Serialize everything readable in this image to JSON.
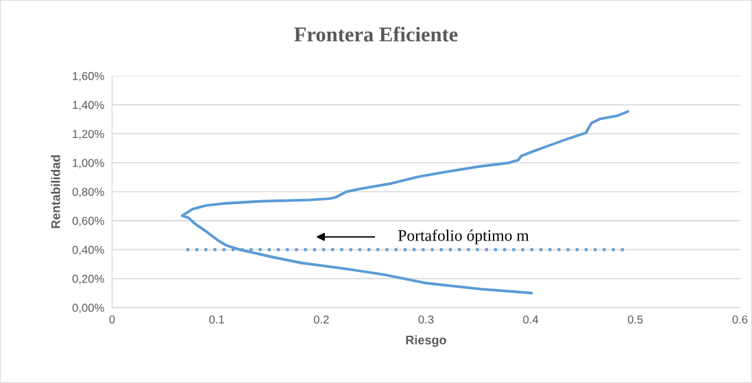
{
  "chart_data": {
    "type": "line",
    "title": "Frontera Eficiente",
    "xlabel": "Riesgo",
    "ylabel": "Rentabilidad",
    "series": [
      {
        "color": "#5b9bd5",
        "line_style": "solid",
        "x": [
          0.401,
          0.352,
          0.299,
          0.26,
          0.221,
          0.181,
          0.155,
          0.122,
          0.109,
          0.1,
          0.09,
          0.079,
          0.073,
          0.067,
          0.077,
          0.09,
          0.109,
          0.142,
          0.188,
          0.208,
          0.214,
          0.224,
          0.237,
          0.267,
          0.293,
          0.319,
          0.352,
          0.379,
          0.388,
          0.391,
          0.401,
          0.417,
          0.437,
          0.453,
          0.455,
          0.458,
          0.466,
          0.483,
          0.493
        ],
        "values": [
          0.1,
          0.128,
          0.17,
          0.227,
          0.27,
          0.308,
          0.346,
          0.4,
          0.43,
          0.47,
          0.525,
          0.58,
          0.62,
          0.634,
          0.68,
          0.705,
          0.72,
          0.734,
          0.743,
          0.752,
          0.762,
          0.8,
          0.82,
          0.857,
          0.904,
          0.937,
          0.975,
          0.999,
          1.018,
          1.046,
          1.075,
          1.117,
          1.169,
          1.207,
          1.235,
          1.273,
          1.302,
          1.325,
          1.354
        ]
      },
      {
        "color": "#5b9bd5",
        "line_style": "dotted",
        "x": [
          0.071,
          0.489
        ],
        "values": [
          0.4,
          0.4
        ]
      }
    ],
    "annotations": [
      "Portafolio óptimo m"
    ],
    "xlim": [
      0,
      0.6
    ],
    "xticks": [
      0,
      0.1,
      0.2,
      0.3,
      0.4,
      0.5,
      0.6
    ],
    "ylim": [
      0,
      1.6
    ],
    "yticks": [
      {
        "value": 0,
        "label": "0,00%"
      },
      {
        "value": 0.2,
        "label": "0,20%"
      },
      {
        "value": 0.4,
        "label": "0,40%"
      },
      {
        "value": 0.6,
        "label": "0,60%"
      },
      {
        "value": 0.8,
        "label": "0,80%"
      },
      {
        "value": 1.0,
        "label": "1,00%"
      },
      {
        "value": 1.2,
        "label": "1,20%"
      },
      {
        "value": 1.4,
        "label": "1,40%"
      },
      {
        "value": 1.6,
        "label": "1,60%"
      }
    ],
    "grid": "y",
    "marker": "none"
  }
}
